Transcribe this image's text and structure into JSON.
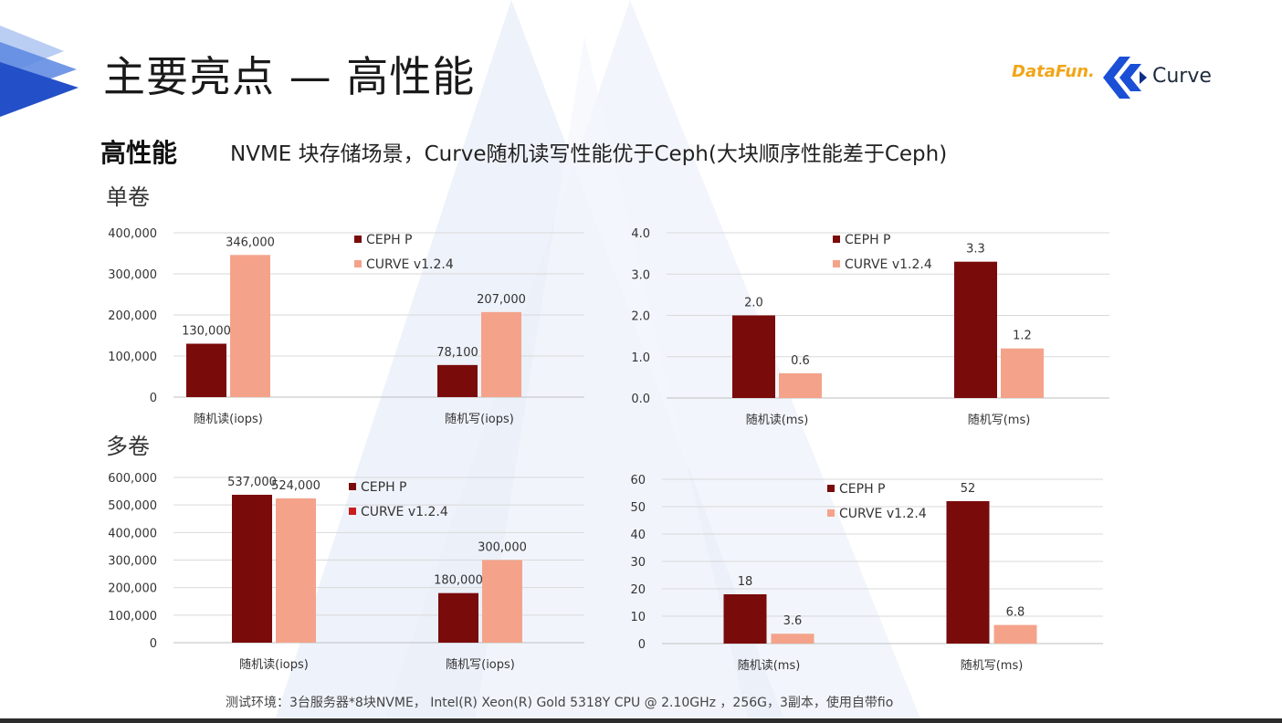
{
  "header": {
    "title": "主要亮点 — 高性能",
    "logos": {
      "datafun": "DataFun.",
      "curve": "Curve"
    }
  },
  "intro": {
    "heading": "高性能",
    "text": "NVME  块存储场景，Curve随机读写性能优于Ceph(大块顺序性能差于Ceph)"
  },
  "sections": {
    "single": "单卷",
    "multi": "多卷"
  },
  "footnote": "测试环境：3台服务器*8块NVME， Intel(R) Xeon(R) Gold 5318Y CPU @ 2.10GHz ，256G，3副本，使用自带fio",
  "colors": {
    "ceph": "#7a0b0b",
    "curve": "#f4a38a",
    "curve_legend_alt": "#c81e1e",
    "grid": "#d9d9d9",
    "text": "#333333"
  },
  "chart_data": [
    {
      "type": "bar",
      "section": "单卷",
      "categories": [
        "随机读(iops)",
        "随机写(iops)"
      ],
      "series": [
        {
          "name": "CEPH P",
          "values": [
            130000,
            78100
          ],
          "labels": [
            "130,000",
            "78,100"
          ],
          "color": "#7a0b0b"
        },
        {
          "name": "CURVE v1.2.4",
          "values": [
            346000,
            207000
          ],
          "labels": [
            "346,000",
            "207,000"
          ],
          "color": "#f4a38a"
        }
      ],
      "ylim": [
        0,
        400000
      ],
      "ystep": 100000,
      "yticks": [
        "0",
        "100,000",
        "200,000",
        "300,000",
        "400,000"
      ],
      "legend_position": "top-right",
      "grid": true
    },
    {
      "type": "bar",
      "section": "单卷",
      "categories": [
        "随机读(ms)",
        "随机写(ms)"
      ],
      "series": [
        {
          "name": "CEPH P",
          "values": [
            2.0,
            3.3
          ],
          "labels": [
            "2.0",
            "3.3"
          ],
          "color": "#7a0b0b"
        },
        {
          "name": "CURVE v1.2.4",
          "values": [
            0.6,
            1.2
          ],
          "labels": [
            "0.6",
            "1.2"
          ],
          "color": "#f4a38a"
        }
      ],
      "ylim": [
        0,
        4
      ],
      "ystep": 1,
      "yticks": [
        "0.0",
        "1.0",
        "2.0",
        "3.0",
        "4.0"
      ],
      "legend_position": "top-center",
      "grid": true
    },
    {
      "type": "bar",
      "section": "多卷",
      "categories": [
        "随机读(iops)",
        "随机写(iops)"
      ],
      "series": [
        {
          "name": "CEPH P",
          "values": [
            537000,
            180000
          ],
          "labels": [
            "537,000",
            "180,000"
          ],
          "color": "#7a0b0b"
        },
        {
          "name": "CURVE v1.2.4",
          "values": [
            524000,
            300000
          ],
          "labels": [
            "524,000",
            "300,000"
          ],
          "color": "#f4a38a",
          "legend_color": "#c81e1e"
        }
      ],
      "ylim": [
        0,
        600000
      ],
      "ystep": 100000,
      "yticks": [
        "0",
        "100,000",
        "200,000",
        "300,000",
        "400,000",
        "500,000",
        "600,000"
      ],
      "legend_position": "top-right",
      "grid": true
    },
    {
      "type": "bar",
      "section": "多卷",
      "categories": [
        "随机读(ms)",
        "随机写(ms)"
      ],
      "series": [
        {
          "name": "CEPH P",
          "values": [
            18,
            52
          ],
          "labels": [
            "18",
            "52"
          ],
          "color": "#7a0b0b"
        },
        {
          "name": "CURVE v1.2.4",
          "values": [
            3.6,
            6.8
          ],
          "labels": [
            "3.6",
            "6.8"
          ],
          "color": "#f4a38a"
        }
      ],
      "ylim": [
        0,
        60
      ],
      "ystep": 10,
      "yticks": [
        "0",
        "10",
        "20",
        "30",
        "40",
        "50",
        "60"
      ],
      "legend_position": "top-center",
      "grid": true
    }
  ]
}
